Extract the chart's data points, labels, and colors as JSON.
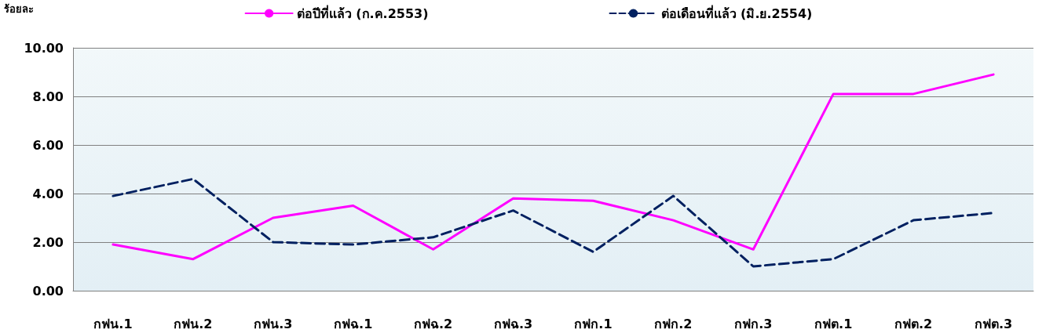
{
  "chart_data": {
    "type": "line",
    "ylabel": "ร้อยละ",
    "categories": [
      "กฟน.1",
      "กฟน.2",
      "กฟน.3",
      "กฟฉ.1",
      "กฟฉ.2",
      "กฟฉ.3",
      "กฟก.1",
      "กฟก.2",
      "กฟก.3",
      "กฟต.1",
      "กฟต.2",
      "กฟต.3"
    ],
    "series": [
      {
        "name": "ต่อปีที่แล้ว (ก.ค.2553)",
        "color": "#ff00ff",
        "line_style": "solid",
        "values": [
          1.9,
          1.3,
          3.0,
          3.5,
          1.7,
          3.8,
          3.7,
          2.9,
          1.7,
          8.1,
          8.1,
          8.9
        ]
      },
      {
        "name": "ต่อเดือนที่แล้ว (มิ.ย.2554)",
        "color": "#002060",
        "line_style": "dashed",
        "values": [
          3.9,
          4.6,
          2.0,
          1.9,
          2.2,
          3.3,
          1.6,
          3.9,
          1.0,
          1.3,
          2.9,
          3.2
        ]
      }
    ],
    "ylim": [
      0,
      10
    ],
    "yticks": [
      {
        "value": 0,
        "label": "0.00"
      },
      {
        "value": 2,
        "label": "2.00"
      },
      {
        "value": 4,
        "label": "4.00"
      },
      {
        "value": 6,
        "label": "6.00"
      },
      {
        "value": 8,
        "label": "8.00"
      },
      {
        "value": 10,
        "label": "10.00"
      }
    ],
    "grid": "y",
    "legend": "top",
    "marker": "none"
  }
}
